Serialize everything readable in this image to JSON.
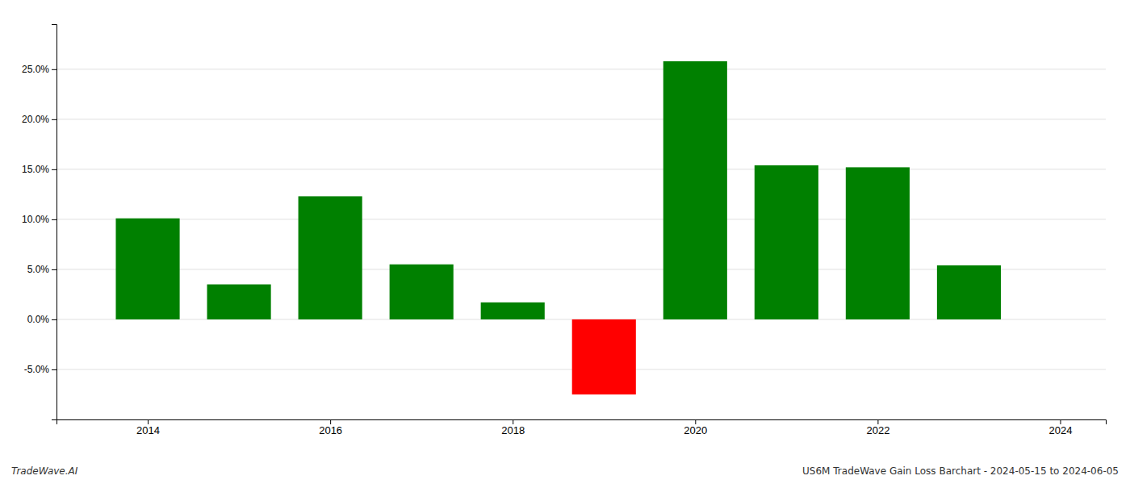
{
  "chart_data": {
    "type": "bar",
    "x": [
      2014,
      2015,
      2016,
      2017,
      2018,
      2019,
      2020,
      2021,
      2022,
      2023
    ],
    "values": [
      0.101,
      0.035,
      0.123,
      0.055,
      0.017,
      -0.075,
      0.258,
      0.154,
      0.152,
      0.054
    ],
    "colors": [
      "#008000",
      "#008000",
      "#008000",
      "#008000",
      "#008000",
      "#ff0000",
      "#008000",
      "#008000",
      "#008000",
      "#008000"
    ],
    "xlim": [
      2013.0,
      2024.5
    ],
    "xticks": [
      2014,
      2016,
      2018,
      2020,
      2022,
      2024
    ],
    "ylim": [
      -0.1,
      0.295
    ],
    "yticks": [
      {
        "value": -0.05,
        "label": "-5.0%"
      },
      {
        "value": 0.0,
        "label": "0.0%"
      },
      {
        "value": 0.05,
        "label": "5.0%"
      },
      {
        "value": 0.1,
        "label": "10.0%"
      },
      {
        "value": 0.15,
        "label": "15.0%"
      },
      {
        "value": 0.2,
        "label": "20.0%"
      },
      {
        "value": 0.25,
        "label": "25.0%"
      }
    ],
    "grid": true,
    "annotations": [
      "TradeWave.AI",
      "US6M TradeWave Gain Loss Barchart - 2024-05-15 to 2024-06-05"
    ]
  }
}
